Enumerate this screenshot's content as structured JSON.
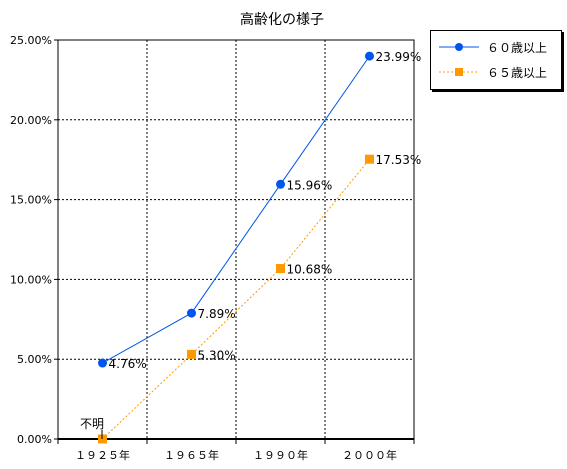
{
  "chart_data": {
    "type": "line",
    "title": "高齢化の様子",
    "categories": [
      "１９２５年",
      "１９６５年",
      "１９９０年",
      "２０００年"
    ],
    "ylim": [
      0,
      25
    ],
    "y_ticks": [
      "0.00%",
      "5.00%",
      "10.00%",
      "15.00%",
      "20.00%",
      "25.00%"
    ],
    "grid": true,
    "legend_position": "right",
    "series": [
      {
        "name": "６０歳以上",
        "values": [
          4.76,
          7.89,
          15.96,
          23.99
        ],
        "labels": [
          "4.76%",
          "7.89%",
          "15.96%",
          "23.99%"
        ],
        "color": "#0055ee",
        "marker": "circle",
        "line": "solid"
      },
      {
        "name": "６５歳以上",
        "values": [
          0,
          5.3,
          10.68,
          17.53
        ],
        "labels": [
          "",
          "5.30%",
          "10.68%",
          "17.53%"
        ],
        "color": "#ff9900",
        "marker": "square",
        "line": "dotted"
      }
    ],
    "annotation": "不明"
  }
}
